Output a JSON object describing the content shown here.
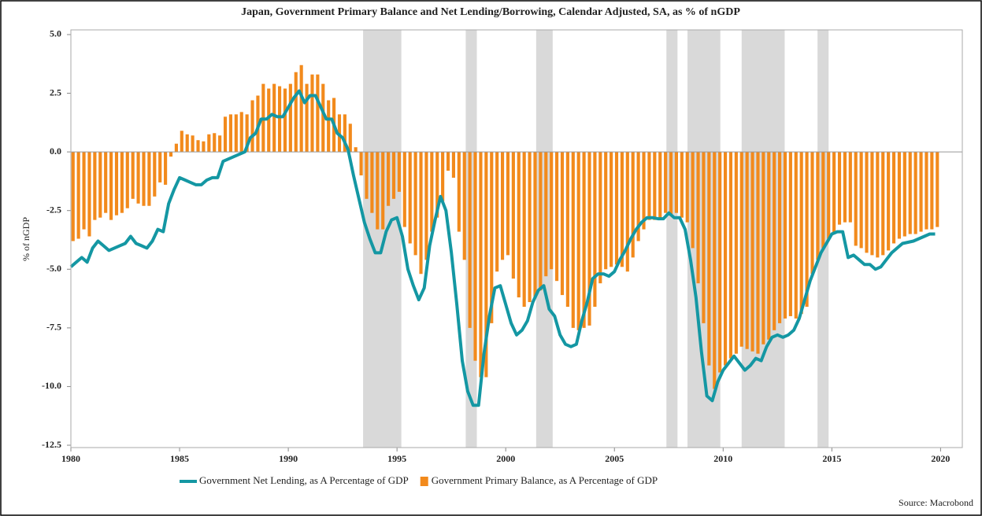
{
  "chart_data": {
    "type": "bar-line",
    "title": "Japan, Government Primary Balance and Net Lending/Borrowing, Calendar Adjusted, SA, as % of nGDP",
    "y_label": "% of nGDP",
    "source": "Source: Macrobond",
    "xlim": [
      1980,
      2021
    ],
    "xticks": [
      1980,
      1985,
      1990,
      1995,
      2000,
      2005,
      2010,
      2015,
      2020
    ],
    "ylim": [
      -12.6,
      5.2
    ],
    "yticks": [
      {
        "value": 5,
        "label": "5.0"
      },
      2.5,
      {
        "value": 0,
        "label": "0.0"
      },
      -2.5,
      {
        "value": -5,
        "label": "-5.0"
      },
      -7.5,
      {
        "value": -10,
        "label": "-10.0"
      },
      -12.5
    ],
    "zero_line": true,
    "shaded_periods": [
      [
        1993.44,
        1995.2
      ],
      [
        1998.16,
        1998.67
      ],
      [
        2001.4,
        2002.16
      ],
      [
        2007.39,
        2007.9
      ],
      [
        2008.36,
        2009.87
      ],
      [
        2010.85,
        2012.83
      ],
      [
        2014.34,
        2014.85
      ]
    ],
    "shade_color": "#d9d9d9",
    "x": [
      1980,
      1980.25,
      1980.5,
      1980.75,
      1981,
      1981.25,
      1981.5,
      1981.75,
      1982,
      1982.25,
      1982.5,
      1982.75,
      1983,
      1983.25,
      1983.5,
      1983.75,
      1984,
      1984.25,
      1984.5,
      1984.75,
      1985,
      1985.25,
      1985.5,
      1985.75,
      1986,
      1986.25,
      1986.5,
      1986.75,
      1987,
      1987.25,
      1987.5,
      1987.75,
      1988,
      1988.25,
      1988.5,
      1988.75,
      1989,
      1989.25,
      1989.5,
      1989.75,
      1990,
      1990.25,
      1990.5,
      1990.75,
      1991,
      1991.25,
      1991.5,
      1991.75,
      1992,
      1992.25,
      1992.5,
      1992.75,
      1993,
      1993.25,
      1993.5,
      1993.75,
      1994,
      1994.25,
      1994.5,
      1994.75,
      1995,
      1995.25,
      1995.5,
      1995.75,
      1996,
      1996.25,
      1996.5,
      1996.75,
      1997,
      1997.25,
      1997.5,
      1997.75,
      1998,
      1998.25,
      1998.5,
      1998.75,
      1999,
      1999.25,
      1999.5,
      1999.75,
      2000,
      2000.25,
      2000.5,
      2000.75,
      2001,
      2001.25,
      2001.5,
      2001.75,
      2002,
      2002.25,
      2002.5,
      2002.75,
      2003,
      2003.25,
      2003.5,
      2003.75,
      2004,
      2004.25,
      2004.5,
      2004.75,
      2005,
      2005.25,
      2005.5,
      2005.75,
      2006,
      2006.25,
      2006.5,
      2006.75,
      2007,
      2007.25,
      2007.5,
      2007.75,
      2008,
      2008.25,
      2008.5,
      2008.75,
      2009,
      2009.25,
      2009.5,
      2009.75,
      2010,
      2010.25,
      2010.5,
      2010.75,
      2011,
      2011.25,
      2011.5,
      2011.75,
      2012,
      2012.25,
      2012.5,
      2012.75,
      2013,
      2013.25,
      2013.5,
      2013.75,
      2014,
      2014.25,
      2014.5,
      2014.75,
      2015,
      2015.25,
      2015.5,
      2015.75,
      2016,
      2016.25,
      2016.5,
      2016.75,
      2017,
      2017.25,
      2017.5,
      2017.75,
      2018,
      2018.25,
      2018.5,
      2018.75,
      2019,
      2019.25,
      2019.5,
      2019.75
    ],
    "series": [
      {
        "name": "Government Net Lending, as A Percentage of GDP",
        "kind": "line",
        "color": "#1497a3",
        "values": [
          -4.9,
          -4.7,
          -4.5,
          -4.7,
          -4.1,
          -3.8,
          -4.0,
          -4.2,
          -4.1,
          -4.0,
          -3.9,
          -3.6,
          -3.9,
          -4.0,
          -4.1,
          -3.8,
          -3.3,
          -3.4,
          -2.2,
          -1.6,
          -1.1,
          -1.2,
          -1.3,
          -1.4,
          -1.4,
          -1.2,
          -1.1,
          -1.1,
          -0.4,
          -0.3,
          -0.2,
          -0.1,
          0.0,
          0.6,
          0.8,
          1.4,
          1.4,
          1.6,
          1.5,
          1.5,
          1.9,
          2.3,
          2.6,
          2.1,
          2.4,
          2.4,
          1.9,
          1.4,
          1.4,
          0.8,
          0.6,
          0.1,
          -1.0,
          -2.0,
          -3.0,
          -3.7,
          -4.3,
          -4.3,
          -3.4,
          -2.9,
          -2.8,
          -3.6,
          -5.0,
          -5.7,
          -6.3,
          -5.8,
          -4.0,
          -2.9,
          -1.9,
          -2.5,
          -4.3,
          -6.5,
          -8.9,
          -10.2,
          -10.8,
          -10.8,
          -8.6,
          -7.0,
          -5.8,
          -5.7,
          -6.5,
          -7.3,
          -7.8,
          -7.6,
          -7.2,
          -6.4,
          -5.9,
          -5.7,
          -6.7,
          -7.0,
          -7.8,
          -8.2,
          -8.3,
          -8.2,
          -7.2,
          -6.4,
          -5.4,
          -5.2,
          -5.2,
          -5.3,
          -5.1,
          -4.6,
          -4.2,
          -3.7,
          -3.3,
          -3.0,
          -2.8,
          -2.8,
          -2.85,
          -2.85,
          -2.6,
          -2.8,
          -2.8,
          -3.3,
          -4.6,
          -6.2,
          -8.5,
          -10.4,
          -10.6,
          -9.8,
          -9.3,
          -9.0,
          -8.7,
          -9.0,
          -9.3,
          -9.1,
          -8.8,
          -8.9,
          -8.3,
          -7.9,
          -7.8,
          -7.9,
          -7.8,
          -7.6,
          -7.1,
          -6.3,
          -5.5,
          -4.9,
          -4.3,
          -3.9,
          -3.5,
          -3.4,
          -3.4,
          -4.5,
          -4.4,
          -4.6,
          -4.8,
          -4.8,
          -5.0,
          -4.9,
          -4.6,
          -4.3,
          -4.1,
          -3.9,
          -3.85,
          -3.8,
          -3.7,
          -3.6,
          -3.5,
          -3.5
        ]
      },
      {
        "name": "Government Primary Balance, as A Percentage of GDP",
        "kind": "bar",
        "color": "#f28a1c",
        "values": [
          -3.8,
          -3.7,
          -3.3,
          -3.6,
          -2.9,
          -2.8,
          -2.6,
          -2.9,
          -2.7,
          -2.6,
          -2.4,
          -2.0,
          -2.2,
          -2.3,
          -2.3,
          -1.9,
          -1.3,
          -1.4,
          -0.2,
          0.35,
          0.9,
          0.75,
          0.7,
          0.5,
          0.45,
          0.75,
          0.8,
          0.7,
          1.5,
          1.6,
          1.6,
          1.7,
          1.6,
          2.2,
          2.4,
          2.9,
          2.7,
          2.9,
          2.8,
          2.7,
          2.9,
          3.4,
          3.7,
          2.9,
          3.3,
          3.3,
          2.9,
          2.2,
          2.3,
          1.6,
          1.6,
          1.2,
          0.2,
          -1.0,
          -2.0,
          -2.6,
          -3.3,
          -3.3,
          -2.3,
          -2.0,
          -1.7,
          -3.2,
          -3.9,
          -4.4,
          -5.2,
          -4.6,
          -3.4,
          -2.8,
          -2.1,
          -0.8,
          -1.1,
          -3.4,
          -4.6,
          -7.5,
          -8.9,
          -9.6,
          -9.6,
          -7.3,
          -5.1,
          -4.6,
          -4.4,
          -5.4,
          -6.2,
          -6.6,
          -6.4,
          -6.2,
          -5.9,
          -5.3,
          -5.0,
          -5.5,
          -6.1,
          -6.6,
          -7.5,
          -7.6,
          -7.5,
          -7.4,
          -6.6,
          -5.6,
          -5.0,
          -4.9,
          -4.8,
          -4.9,
          -5.1,
          -4.5,
          -3.8,
          -3.3,
          -2.9,
          -2.9,
          -2.8,
          -2.6,
          -2.7,
          -2.6,
          -2.8,
          -3.0,
          -4.1,
          -5.6,
          -7.3,
          -9.1,
          -10.1,
          -9.4,
          -9.1,
          -8.8,
          -8.6,
          -8.3,
          -8.4,
          -8.5,
          -8.6,
          -8.2,
          -8.0,
          -7.6,
          -7.3,
          -7.1,
          -7.0,
          -7.1,
          -6.9,
          -6.6,
          -5.2,
          -4.6,
          -4.1,
          -3.7,
          -3.5,
          -3.1,
          -3.0,
          -3.0,
          -4.0,
          -4.1,
          -4.3,
          -4.4,
          -4.5,
          -4.4,
          -4.2,
          -3.9,
          -3.7,
          -3.6,
          -3.5,
          -3.5,
          -3.4,
          -3.3,
          -3.3,
          -3.2
        ]
      }
    ]
  }
}
